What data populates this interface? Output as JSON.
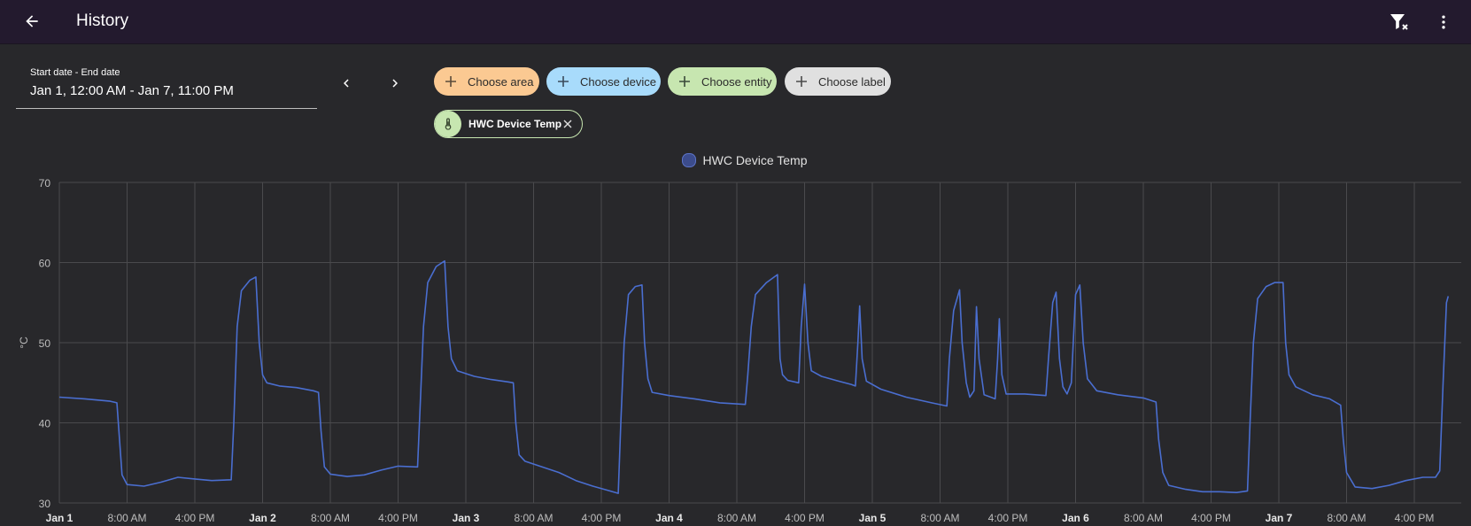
{
  "header": {
    "title": "History",
    "back_icon": "arrow-left-icon",
    "filter_clear_icon": "filter-remove-icon",
    "more_icon": "dots-vertical-icon"
  },
  "date_range": {
    "label": "Start date - End date",
    "value": "Jan 1, 12:00 AM - Jan 7, 11:00 PM"
  },
  "target_picker": {
    "chips": [
      {
        "label": "Choose area",
        "color": "#fbc992"
      },
      {
        "label": "Choose device",
        "color": "#a8dbfb"
      },
      {
        "label": "Choose entity",
        "color": "#c7e6b0"
      },
      {
        "label": "Choose label",
        "color": "#e0e0e0"
      }
    ],
    "selected": [
      {
        "label": "HWC Device Temp",
        "icon": "thermometer-icon",
        "color": "#c7e6b0"
      }
    ]
  },
  "chart_data": {
    "type": "line",
    "title": "",
    "ylabel": "°C",
    "ylim": [
      30,
      70
    ],
    "yticks": [
      30,
      40,
      50,
      60,
      70
    ],
    "xlim_hours": [
      0,
      164
    ],
    "x_ticks": [
      {
        "label": "Jan 1",
        "bold": true
      },
      {
        "label": "8:00 AM",
        "bold": false
      },
      {
        "label": "4:00 PM",
        "bold": false
      },
      {
        "label": "Jan 2",
        "bold": true
      },
      {
        "label": "8:00 AM",
        "bold": false
      },
      {
        "label": "4:00 PM",
        "bold": false
      },
      {
        "label": "Jan 3",
        "bold": true
      },
      {
        "label": "8:00 AM",
        "bold": false
      },
      {
        "label": "4:00 PM",
        "bold": false
      },
      {
        "label": "Jan 4",
        "bold": true
      },
      {
        "label": "8:00 AM",
        "bold": false
      },
      {
        "label": "4:00 PM",
        "bold": false
      },
      {
        "label": "Jan 5",
        "bold": true
      },
      {
        "label": "8:00 AM",
        "bold": false
      },
      {
        "label": "4:00 PM",
        "bold": false
      },
      {
        "label": "Jan 6",
        "bold": true
      },
      {
        "label": "8:00 AM",
        "bold": false
      },
      {
        "label": "4:00 PM",
        "bold": false
      },
      {
        "label": "Jan 7",
        "bold": true
      },
      {
        "label": "8:00 AM",
        "bold": false
      },
      {
        "label": "4:00 PM",
        "bold": false
      }
    ],
    "grid": true,
    "legend": "top-center",
    "series": [
      {
        "name": "HWC Device Temp",
        "color": "#4a6ed0",
        "points": [
          [
            0,
            43.2
          ],
          [
            3,
            43.0
          ],
          [
            6,
            42.7
          ],
          [
            6.8,
            42.5
          ],
          [
            7.1,
            38
          ],
          [
            7.4,
            33.5
          ],
          [
            8,
            32.3
          ],
          [
            10,
            32.1
          ],
          [
            12,
            32.6
          ],
          [
            14,
            33.2
          ],
          [
            16,
            33.0
          ],
          [
            18,
            32.8
          ],
          [
            20.3,
            32.9
          ],
          [
            20.6,
            40
          ],
          [
            21,
            52
          ],
          [
            21.5,
            56.5
          ],
          [
            22.5,
            57.8
          ],
          [
            23.2,
            58.2
          ],
          [
            23.6,
            50
          ],
          [
            24,
            46
          ],
          [
            24.5,
            45
          ],
          [
            26,
            44.6
          ],
          [
            28,
            44.4
          ],
          [
            30,
            44.0
          ],
          [
            30.6,
            43.8
          ],
          [
            30.9,
            39
          ],
          [
            31.3,
            34.5
          ],
          [
            32,
            33.6
          ],
          [
            34,
            33.3
          ],
          [
            36,
            33.5
          ],
          [
            38,
            34.1
          ],
          [
            40,
            34.6
          ],
          [
            42.3,
            34.5
          ],
          [
            42.6,
            42
          ],
          [
            43,
            52
          ],
          [
            43.5,
            57.5
          ],
          [
            44.5,
            59.5
          ],
          [
            45.5,
            60.2
          ],
          [
            45.9,
            52
          ],
          [
            46.3,
            48
          ],
          [
            47,
            46.5
          ],
          [
            49,
            45.8
          ],
          [
            51,
            45.4
          ],
          [
            53,
            45.1
          ],
          [
            53.6,
            45.0
          ],
          [
            53.9,
            40
          ],
          [
            54.3,
            36
          ],
          [
            55,
            35.2
          ],
          [
            57,
            34.5
          ],
          [
            59,
            33.8
          ],
          [
            61,
            32.8
          ],
          [
            63,
            32.1
          ],
          [
            65,
            31.5
          ],
          [
            66,
            31.2
          ],
          [
            66.3,
            40
          ],
          [
            66.7,
            50
          ],
          [
            67.2,
            56
          ],
          [
            68,
            57.0
          ],
          [
            68.8,
            57.2
          ],
          [
            69.1,
            50
          ],
          [
            69.5,
            45.5
          ],
          [
            70,
            43.8
          ],
          [
            72,
            43.4
          ],
          [
            75,
            43.0
          ],
          [
            78,
            42.5
          ],
          [
            81,
            42.3
          ],
          [
            81.3,
            46
          ],
          [
            81.7,
            52
          ],
          [
            82.2,
            56
          ],
          [
            83.5,
            57.5
          ],
          [
            84.8,
            58.5
          ],
          [
            85.1,
            48
          ],
          [
            85.4,
            46
          ],
          [
            86,
            45.3
          ],
          [
            87.3,
            45.0
          ],
          [
            87.6,
            52
          ],
          [
            88.0,
            57.3
          ],
          [
            88.4,
            50
          ],
          [
            88.8,
            46.5
          ],
          [
            90,
            45.8
          ],
          [
            92,
            45.2
          ],
          [
            93.5,
            44.8
          ],
          [
            94,
            44.6
          ],
          [
            94.3,
            50
          ],
          [
            94.5,
            54.6
          ],
          [
            94.8,
            48
          ],
          [
            95.3,
            45.2
          ],
          [
            97,
            44.2
          ],
          [
            100,
            43.2
          ],
          [
            103,
            42.5
          ],
          [
            104.8,
            42.1
          ],
          [
            105.1,
            48
          ],
          [
            105.6,
            54
          ],
          [
            106.3,
            56.6
          ],
          [
            106.6,
            50
          ],
          [
            107.1,
            45
          ],
          [
            107.5,
            43.2
          ],
          [
            108.0,
            44
          ],
          [
            108.3,
            54.5
          ],
          [
            108.6,
            48
          ],
          [
            109.2,
            43.5
          ],
          [
            110.5,
            43.0
          ],
          [
            110.8,
            48
          ],
          [
            111.0,
            53.0
          ],
          [
            111.3,
            46
          ],
          [
            111.8,
            43.6
          ],
          [
            114,
            43.6
          ],
          [
            116.5,
            43.4
          ],
          [
            116.8,
            48
          ],
          [
            117.3,
            55
          ],
          [
            117.7,
            56.3
          ],
          [
            118.1,
            48
          ],
          [
            118.5,
            44.5
          ],
          [
            119,
            43.6
          ],
          [
            119.5,
            45
          ],
          [
            120,
            56
          ],
          [
            120.5,
            57.2
          ],
          [
            120.9,
            50
          ],
          [
            121.4,
            45.5
          ],
          [
            122.5,
            44.0
          ],
          [
            125,
            43.5
          ],
          [
            128,
            43.1
          ],
          [
            129.5,
            42.6
          ],
          [
            129.8,
            38
          ],
          [
            130.3,
            33.8
          ],
          [
            131,
            32.2
          ],
          [
            133,
            31.7
          ],
          [
            135,
            31.4
          ],
          [
            137,
            31.4
          ],
          [
            139,
            31.3
          ],
          [
            140.3,
            31.5
          ],
          [
            140.6,
            40
          ],
          [
            141,
            50
          ],
          [
            141.5,
            55.5
          ],
          [
            142.5,
            57.0
          ],
          [
            143.5,
            57.5
          ],
          [
            144.5,
            57.5
          ],
          [
            144.8,
            50
          ],
          [
            145.2,
            46
          ],
          [
            146,
            44.5
          ],
          [
            148,
            43.5
          ],
          [
            150,
            43.0
          ],
          [
            151.3,
            42.2
          ],
          [
            151.6,
            38
          ],
          [
            152,
            33.8
          ],
          [
            153,
            32.0
          ],
          [
            155,
            31.8
          ],
          [
            157,
            32.2
          ],
          [
            159,
            32.8
          ],
          [
            161,
            33.2
          ],
          [
            162.5,
            33.2
          ],
          [
            163,
            34
          ],
          [
            163.4,
            45
          ],
          [
            163.8,
            55
          ],
          [
            164,
            55.8
          ]
        ]
      }
    ]
  }
}
